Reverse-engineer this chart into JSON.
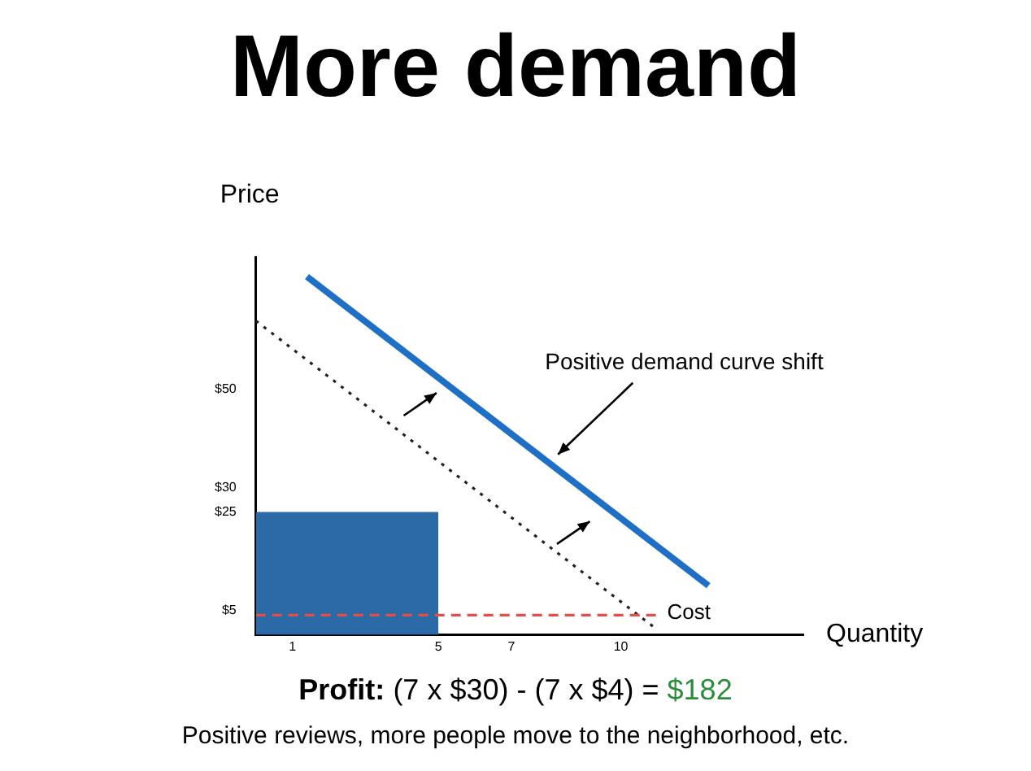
{
  "chart_data": {
    "type": "line",
    "title": "More demand",
    "xlabel": "Quantity",
    "ylabel": "Price",
    "xlim": [
      0,
      15
    ],
    "xticks": [
      1,
      5,
      7,
      10
    ],
    "ylim": [
      0,
      77
    ],
    "yticks": [
      {
        "value": 5,
        "label": "$5"
      },
      {
        "value": 25,
        "label": "$25"
      },
      {
        "value": 30,
        "label": "$30"
      },
      {
        "value": 50,
        "label": "$50"
      }
    ],
    "series": [
      {
        "type": "area",
        "color": "#2b6aa6",
        "x": [
          0,
          5
        ],
        "values": [
          25,
          25
        ]
      },
      {
        "color": "#222222",
        "line_style": "dotted",
        "x": [
          0,
          11
        ],
        "values": [
          64,
          1
        ]
      },
      {
        "color": "#1f6fc5",
        "line_style": "solid",
        "x": [
          1.4,
          12.4
        ],
        "values": [
          73,
          10
        ]
      },
      {
        "name": "Cost",
        "color": "#e0504a",
        "line_style": "dashed",
        "x": [
          0,
          11
        ],
        "values": [
          4,
          4
        ]
      }
    ],
    "annotations": [
      "Profit:",
      "(7 x $30) - (7 x $4) =",
      "$182",
      "Positive reviews, more people move to the neighborhood, etc.",
      "Positive demand curve shift"
    ],
    "marker": "none",
    "grid": false,
    "legend": false
  }
}
